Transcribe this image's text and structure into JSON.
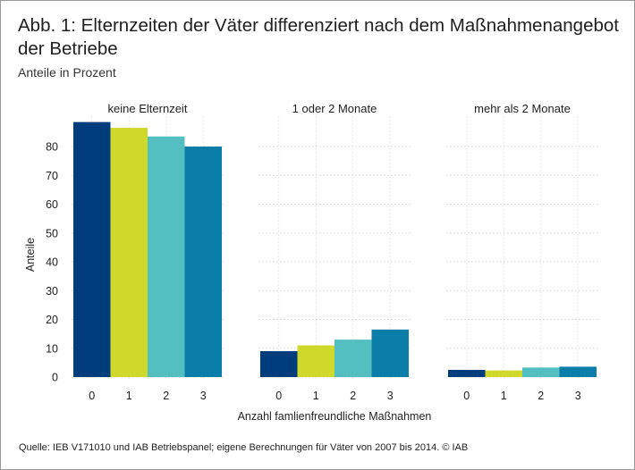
{
  "header": {
    "title": "Abb. 1: Elternzeiten der Väter differenziert nach dem Maßnahmenangebot der Betriebe",
    "subtitle": "Anteile in Prozent"
  },
  "footer": {
    "source": "Quelle: IEB V171010 und IAB Betriebspanel; eigene Berechnungen für Väter von 2007 bis 2014.  © IAB"
  },
  "chart_data": {
    "type": "bar",
    "ylabel": "Anteile",
    "xlabel": "Anzahl famlienfreundliche Maßnahmen",
    "ylim": [
      0,
      90
    ],
    "yticks": [
      0,
      10,
      20,
      30,
      40,
      50,
      60,
      70,
      80
    ],
    "categories": [
      "0",
      "1",
      "2",
      "3"
    ],
    "colors": [
      "#003d7c",
      "#cfd92c",
      "#54bfc0",
      "#0a7ea8"
    ],
    "grid": true,
    "panels": [
      {
        "title": "keine Elternzeit",
        "values": [
          88.5,
          86.5,
          83.5,
          80
        ]
      },
      {
        "title": "1 oder 2 Monate",
        "values": [
          9,
          11,
          13,
          16.5
        ]
      },
      {
        "title": "mehr als 2 Monate",
        "values": [
          2.5,
          2.3,
          3.3,
          3.6
        ]
      }
    ]
  }
}
